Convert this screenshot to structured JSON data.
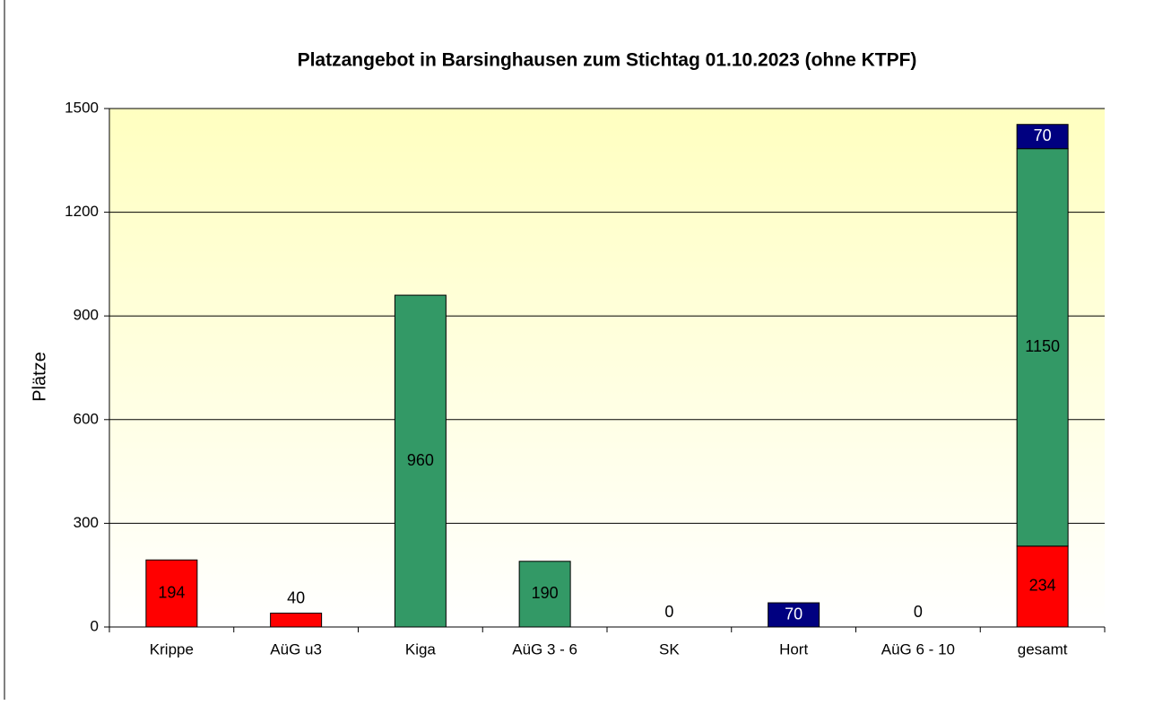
{
  "chart_data": {
    "type": "stacked_bar",
    "title": "Platzangebot in Barsinghausen zum Stichtag 01.10.2023 (ohne KTPF)",
    "y_label": "Plätze",
    "categories": [
      "Krippe",
      "AüG u3",
      "Kiga",
      "AüG 3 - 6",
      "SK",
      "Hort",
      "AüG 6 - 10",
      "gesamt"
    ],
    "series": [
      {
        "color": "#ff0000",
        "values": [
          194,
          40,
          null,
          null,
          null,
          null,
          null,
          234
        ]
      },
      {
        "color": "#339966",
        "values": [
          null,
          null,
          960,
          190,
          0,
          null,
          null,
          1150
        ]
      },
      {
        "color": "#000080",
        "values": [
          null,
          null,
          null,
          null,
          null,
          70,
          0,
          70
        ]
      }
    ],
    "ylim": [
      0,
      1500
    ],
    "yticks": [
      0,
      300,
      600,
      900,
      1200,
      1500
    ],
    "grid": true
  }
}
